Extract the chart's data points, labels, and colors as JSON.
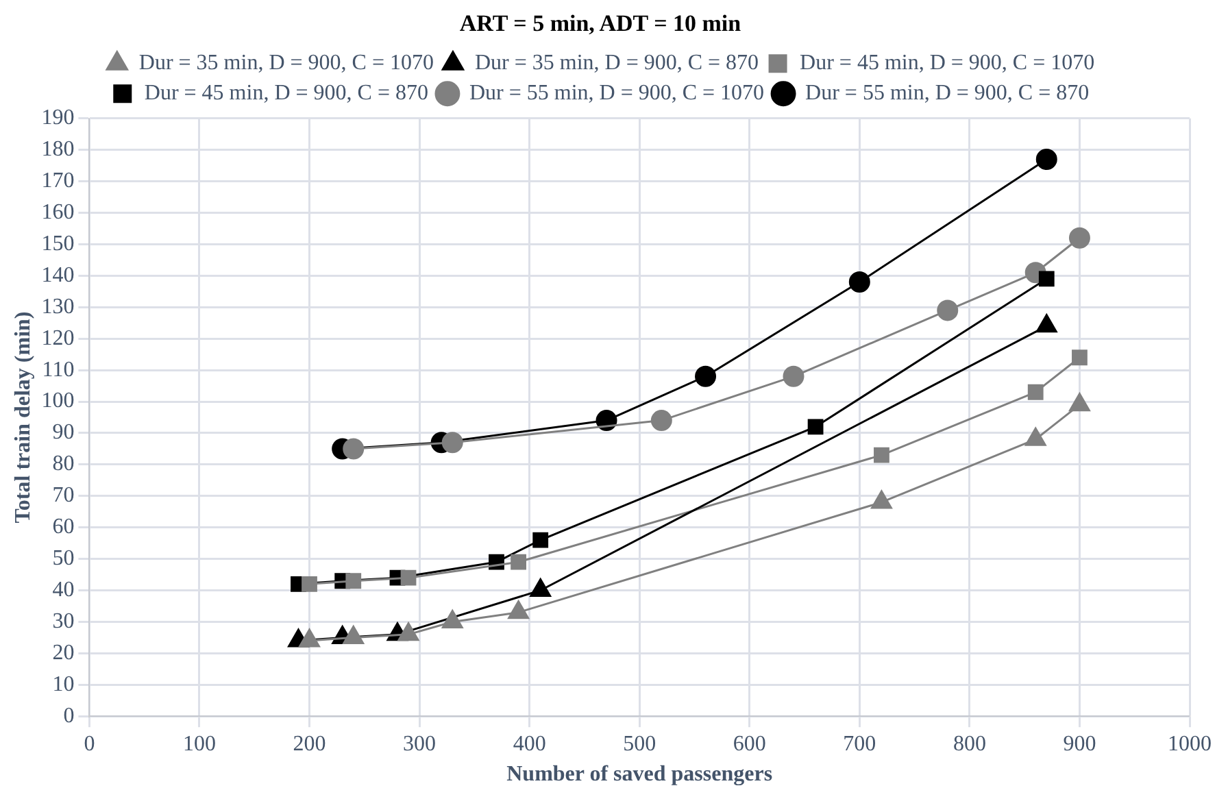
{
  "chart_data": {
    "type": "line",
    "title": "ART = 5 min, ADT = 10 min",
    "xlabel": "Number of saved passengers",
    "ylabel": "Total train delay (min)",
    "xlim": [
      0,
      1000
    ],
    "xticks": [
      0,
      100,
      200,
      300,
      400,
      500,
      600,
      700,
      800,
      900,
      1000
    ],
    "ylim": [
      0,
      190
    ],
    "yticks": [
      0,
      10,
      20,
      30,
      40,
      50,
      60,
      70,
      80,
      90,
      100,
      110,
      120,
      130,
      140,
      150,
      160,
      170,
      180,
      190
    ],
    "grid": true,
    "legend": "top",
    "series": [
      {
        "name": "Dur = 35 min, D = 900, C = 1070",
        "color": "#808080",
        "marker": "triangle",
        "x": [
          200,
          240,
          290,
          330,
          390,
          720,
          860,
          900
        ],
        "values": [
          24,
          25,
          26,
          30,
          33,
          68,
          88,
          99
        ]
      },
      {
        "name": "Dur = 35 min, D = 900, C = 870",
        "color": "#000000",
        "marker": "triangle",
        "x": [
          190,
          230,
          280,
          410,
          870
        ],
        "values": [
          24,
          25,
          26,
          40,
          124
        ]
      },
      {
        "name": "Dur = 45 min, D = 900, C = 1070",
        "color": "#808080",
        "marker": "square",
        "x": [
          200,
          240,
          290,
          390,
          720,
          860,
          900
        ],
        "values": [
          42,
          43,
          44,
          49,
          83,
          103,
          114
        ]
      },
      {
        "name": "Dur = 45 min, D = 900, C = 870",
        "color": "#000000",
        "marker": "square",
        "x": [
          190,
          230,
          280,
          370,
          410,
          660,
          870
        ],
        "values": [
          42,
          43,
          44,
          49,
          56,
          92,
          139
        ]
      },
      {
        "name": "Dur = 55 min, D = 900, C = 1070",
        "color": "#808080",
        "marker": "circle",
        "x": [
          240,
          330,
          520,
          640,
          780,
          860,
          900
        ],
        "values": [
          85,
          87,
          94,
          108,
          129,
          141,
          152
        ]
      },
      {
        "name": "Dur = 55 min, D = 900, C = 870",
        "color": "#000000",
        "marker": "circle",
        "x": [
          230,
          320,
          470,
          560,
          700,
          870
        ],
        "values": [
          85,
          87,
          94,
          108,
          138,
          177
        ]
      }
    ]
  }
}
